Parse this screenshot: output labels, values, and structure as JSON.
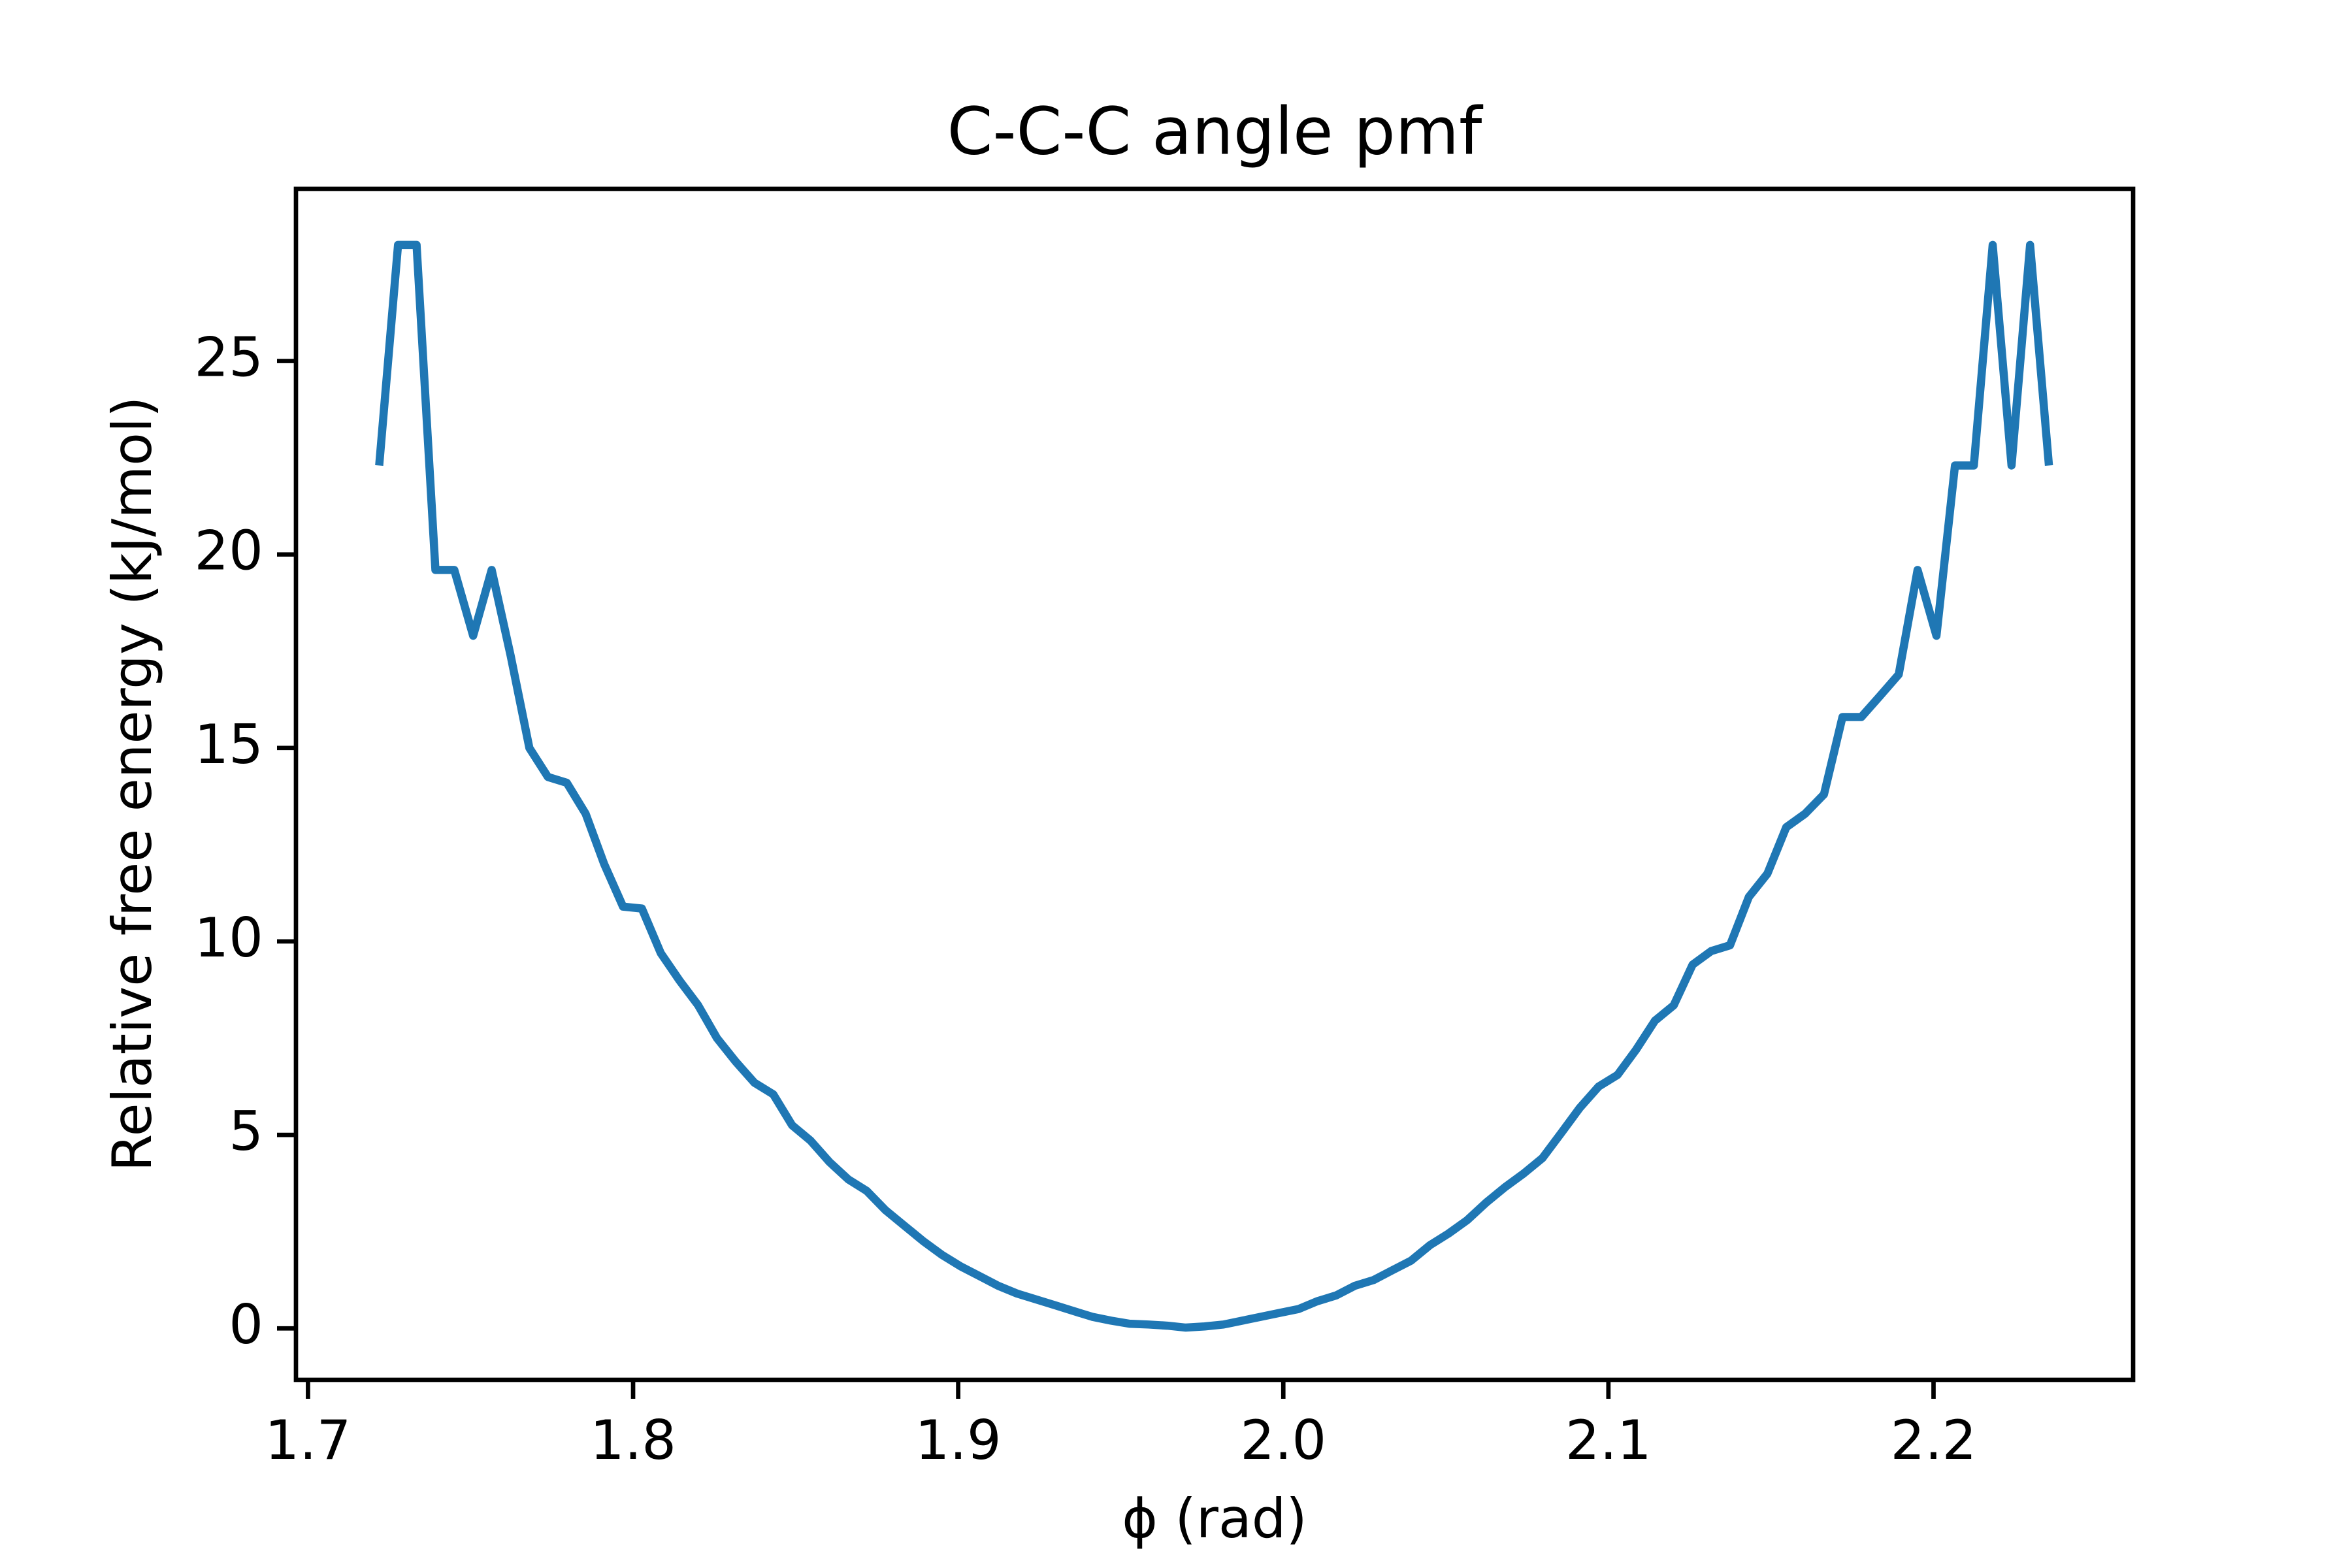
{
  "chart_data": {
    "type": "line",
    "title": "C-C-C angle pmf",
    "x_label": "ϕ (rad)",
    "y_label": "Relative free energy (kJ/mol)",
    "x": [
      1.7219,
      1.7277,
      1.7334,
      1.7392,
      1.745,
      1.7508,
      1.7565,
      1.7623,
      1.7681,
      1.7738,
      1.7796,
      1.7854,
      1.7911,
      1.7969,
      1.8027,
      1.8085,
      1.8142,
      1.82,
      1.8258,
      1.8315,
      1.8373,
      1.8431,
      1.8489,
      1.8546,
      1.8604,
      1.8662,
      1.8719,
      1.8777,
      1.8835,
      1.8893,
      1.895,
      1.9008,
      1.9066,
      1.9123,
      1.9181,
      1.9239,
      1.9297,
      1.9354,
      1.9412,
      1.947,
      1.9527,
      1.9585,
      1.9643,
      1.97,
      1.9758,
      1.9816,
      1.9874,
      1.9931,
      1.9989,
      2.0047,
      2.0104,
      2.0162,
      2.022,
      2.0278,
      2.0335,
      2.0393,
      2.0451,
      2.0508,
      2.0566,
      2.0624,
      2.0682,
      2.0739,
      2.0797,
      2.0855,
      2.0912,
      2.097,
      2.1028,
      2.1085,
      2.1143,
      2.1201,
      2.1259,
      2.1316,
      2.1374,
      2.1432,
      2.1489,
      2.1547,
      2.1605,
      2.1663,
      2.172,
      2.1778,
      2.1836,
      2.1893,
      2.1951,
      2.2009,
      2.2066,
      2.2124,
      2.2182,
      2.224,
      2.2297,
      2.2355
    ],
    "series": [
      {
        "color": "#1f77b4",
        "values": [
          22.3,
          28.0,
          28.0,
          19.6,
          19.6,
          17.9,
          19.6,
          17.4,
          15.0,
          14.25,
          14.1,
          13.3,
          12.0,
          10.9,
          10.85,
          9.7,
          9.0,
          8.35,
          7.5,
          6.9,
          6.35,
          6.05,
          5.25,
          4.85,
          4.3,
          3.85,
          3.55,
          3.05,
          2.65,
          2.25,
          1.9,
          1.6,
          1.35,
          1.1,
          0.9,
          0.75,
          0.6,
          0.45,
          0.3,
          0.2,
          0.12,
          0.1,
          0.07,
          0.02,
          0.05,
          0.1,
          0.2,
          0.3,
          0.4,
          0.5,
          0.7,
          0.85,
          1.1,
          1.25,
          1.5,
          1.75,
          2.15,
          2.45,
          2.8,
          3.25,
          3.65,
          4.0,
          4.4,
          5.05,
          5.7,
          6.25,
          6.55,
          7.2,
          7.95,
          8.35,
          9.4,
          9.75,
          9.9,
          11.15,
          11.75,
          12.95,
          13.3,
          13.8,
          15.8,
          15.8,
          16.35,
          16.9,
          19.6,
          17.9,
          22.3,
          22.3,
          28.0,
          22.3,
          28.0,
          22.3
        ]
      }
    ],
    "xlim": [
      1.6963,
      2.2614
    ],
    "ylim": [
      -1.33,
      29.45
    ],
    "xticks": [
      1.7,
      1.8,
      1.9,
      {
        "value": 2,
        "label": "2.0"
      },
      2.1,
      2.2
    ],
    "yticks": [
      0,
      5,
      10,
      15,
      20,
      25
    ],
    "grid": false
  }
}
